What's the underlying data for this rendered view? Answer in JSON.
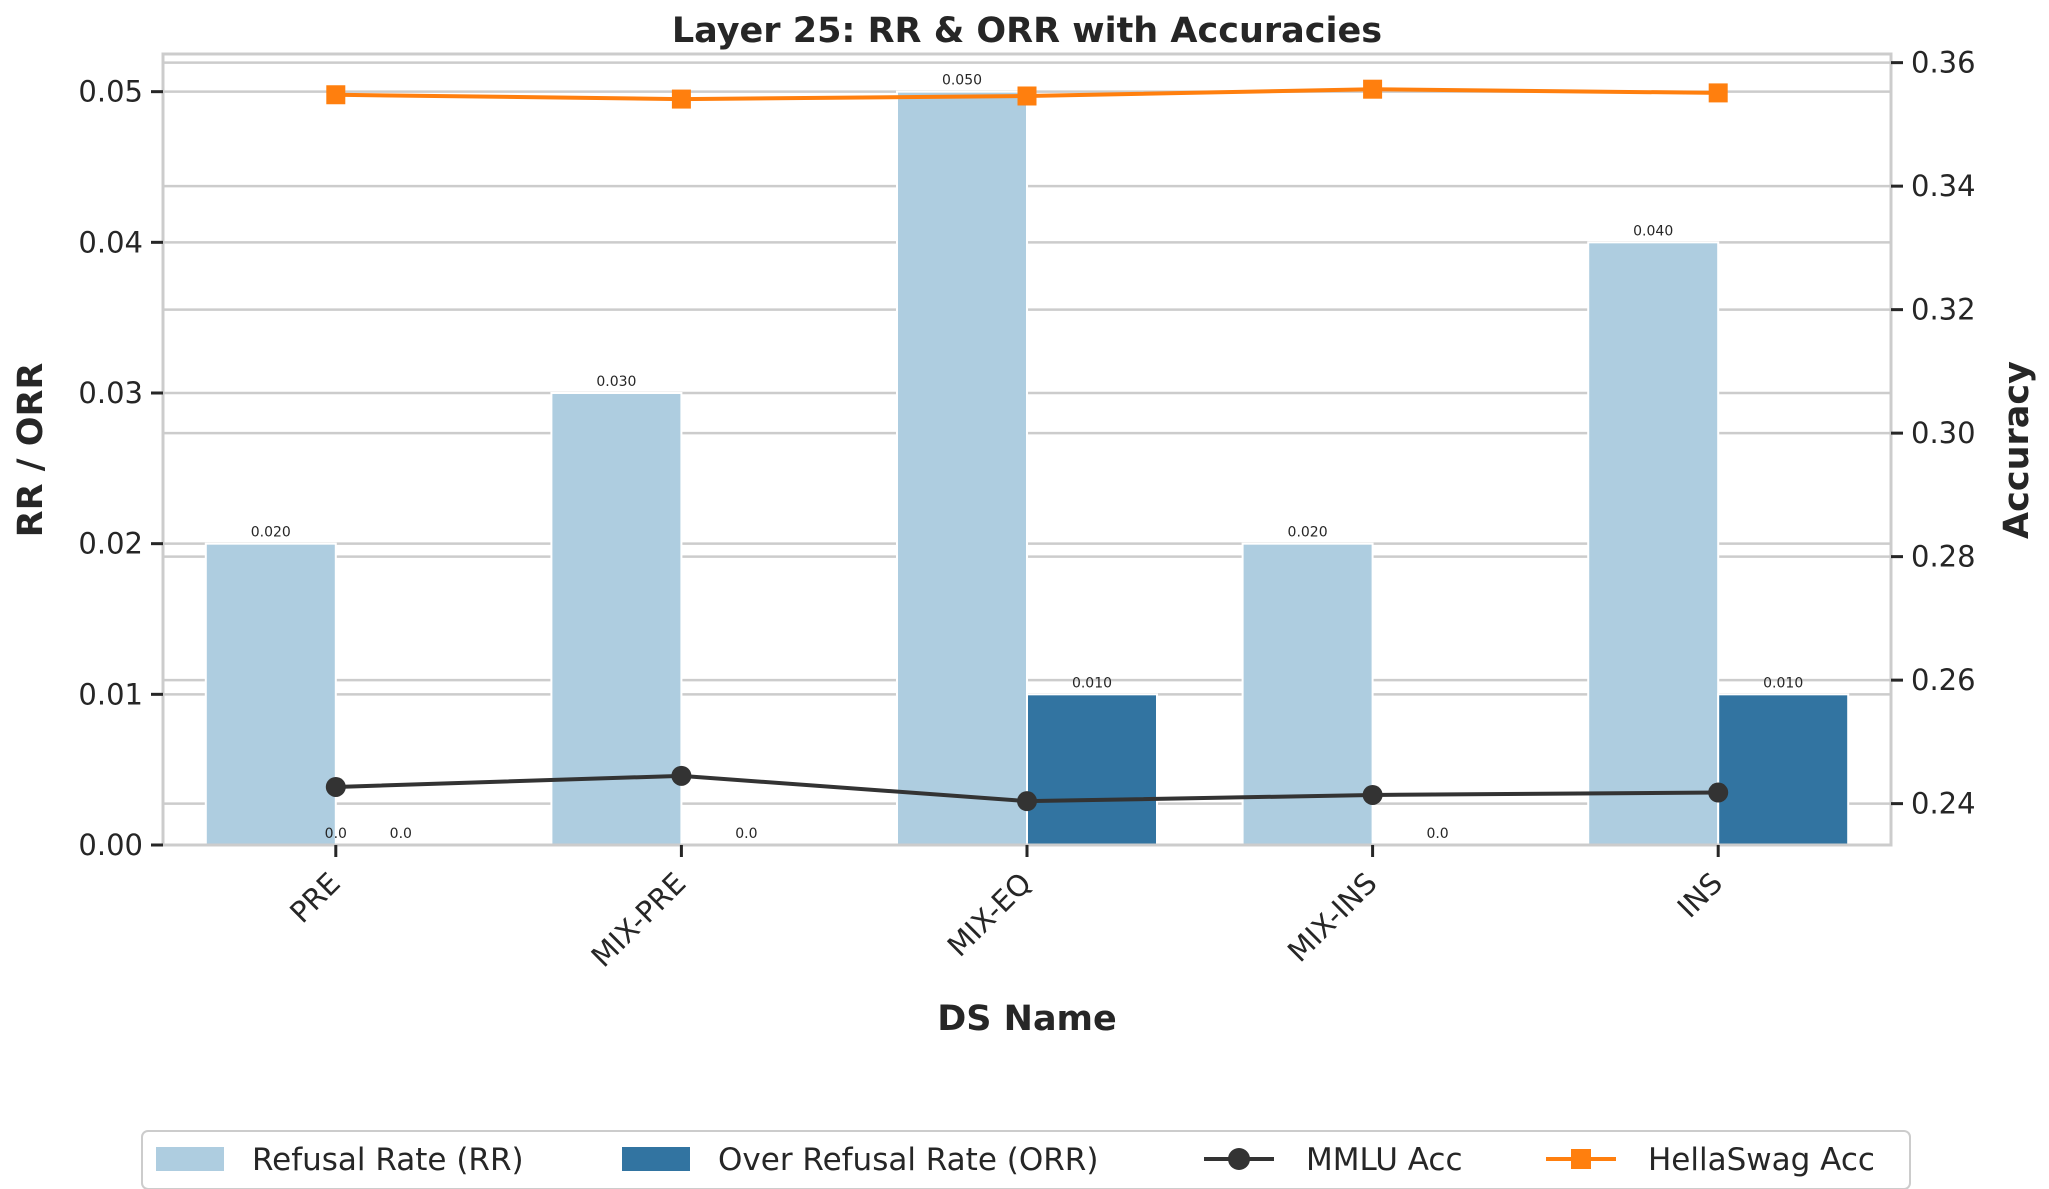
{
  "chart_data": {
    "type": "bar",
    "title": "Layer 25: RR & ORR with Accuracies",
    "xlabel": "DS Name",
    "ylabel": "RR / ORR",
    "y2label": "Accuracy",
    "categories": [
      "PRE",
      "MIX-PRE",
      "MIX-EQ",
      "MIX-INS",
      "INS"
    ],
    "ylim": [
      0,
      0.0525
    ],
    "y2lim": [
      0.2333,
      0.3614
    ],
    "yticks": [
      0.0,
      0.01,
      0.02,
      0.03,
      0.04,
      0.05
    ],
    "ytick_labels": [
      "0.00",
      "0.01",
      "0.02",
      "0.03",
      "0.04",
      "0.05"
    ],
    "y2ticks": [
      0.24,
      0.26,
      0.28,
      0.3,
      0.32,
      0.34,
      0.36
    ],
    "y2tick_labels": [
      "0.24",
      "0.26",
      "0.28",
      "0.30",
      "0.32",
      "0.34",
      "0.36"
    ],
    "grid": true,
    "legend_position": "bottom",
    "bar_series": [
      {
        "name": "Refusal Rate (RR)",
        "color": "#aecde0",
        "values": [
          0.02,
          0.03,
          0.05,
          0.02,
          0.04
        ],
        "labels": [
          "0.020",
          "0.030",
          "0.050",
          "0.020",
          "0.040"
        ]
      },
      {
        "name": "Over Refusal Rate (ORR)",
        "color": "#3274a1",
        "values": [
          0.0,
          0.0,
          0.01,
          0.0,
          0.01
        ],
        "labels": [
          "0.0",
          "0.0",
          "0.010",
          "0.0",
          "0.010"
        ]
      }
    ],
    "extra_labels": [
      {
        "category_index": 0,
        "text": "0.0"
      }
    ],
    "line_series": [
      {
        "name": "MMLU Acc",
        "color": "#333333",
        "marker": "circle",
        "axis": "right",
        "values": [
          0.2427,
          0.2445,
          0.2404,
          0.2414,
          0.2418
        ]
      },
      {
        "name": "HellaSwag Acc",
        "color": "#ff7f0e",
        "marker": "square",
        "axis": "right",
        "values": [
          0.3548,
          0.3541,
          0.3546,
          0.3557,
          0.3551
        ]
      }
    ]
  }
}
